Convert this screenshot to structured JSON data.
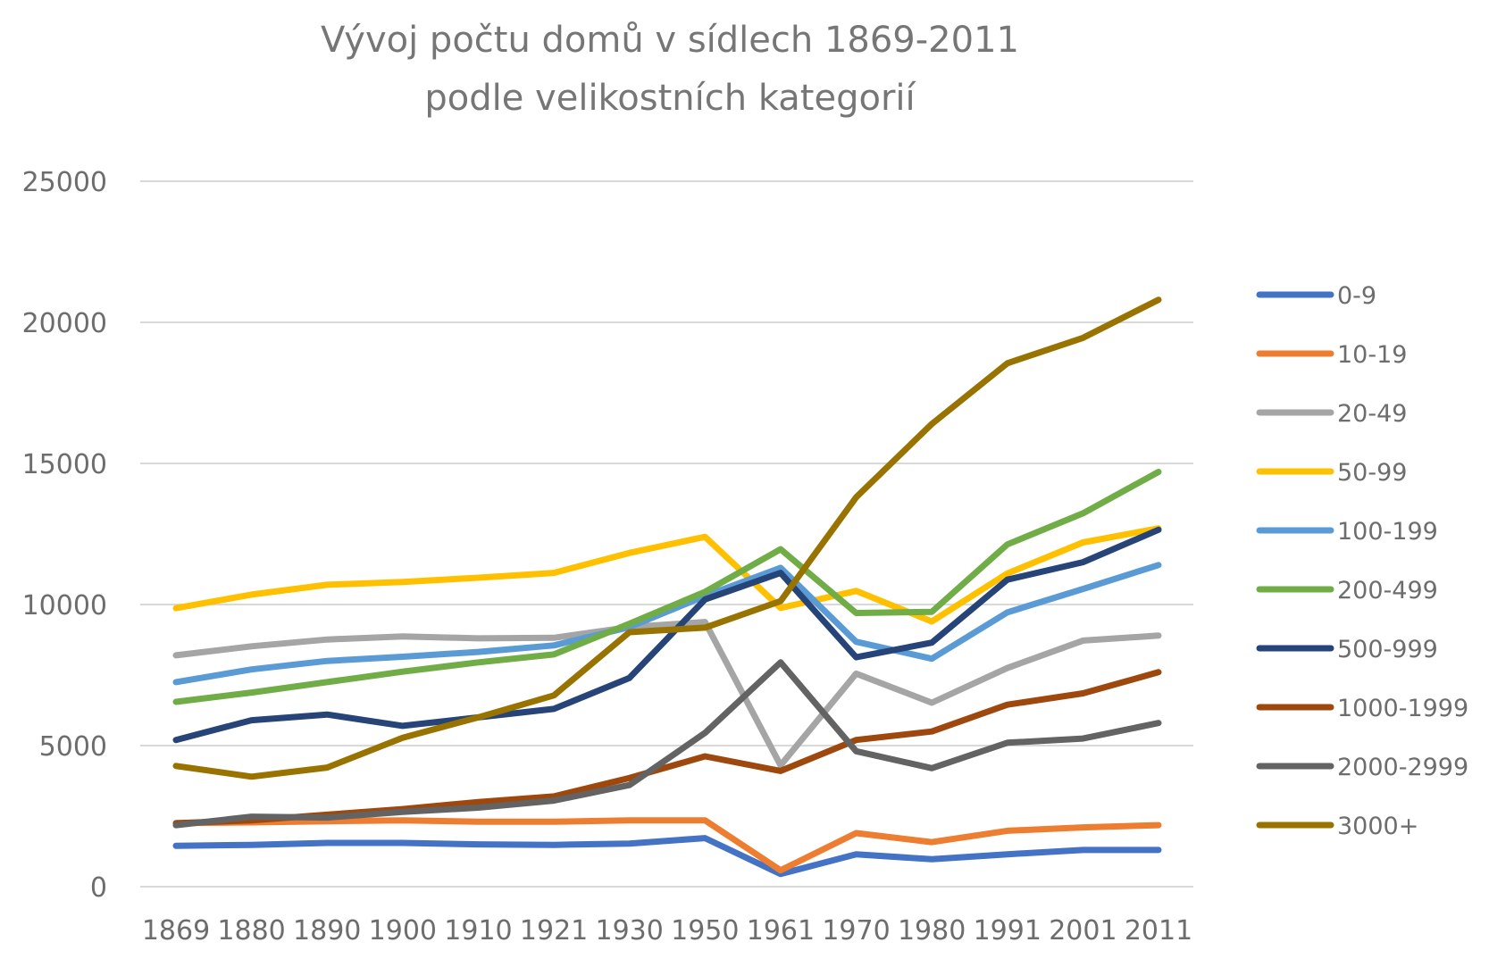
{
  "chart_data": {
    "type": "line",
    "title": "Vývoj počtu domů v sídlech 1869-2011",
    "subtitle": "podle velikostních kategorií",
    "xlabel": "",
    "ylabel": "",
    "ylim": [
      0,
      25000
    ],
    "yticks": [
      "0",
      "5000",
      "10000",
      "15000",
      "20000",
      "25000"
    ],
    "grid": true,
    "legend_position": "right",
    "categories": [
      "1869",
      "1880",
      "1890",
      "1900",
      "1910",
      "1921",
      "1930",
      "1950",
      "1961",
      "1970",
      "1980",
      "1991",
      "2001",
      "2011"
    ],
    "series": [
      {
        "name": "0-9",
        "color": "#4472c4",
        "values": [
          1450,
          1480,
          1550,
          1550,
          1500,
          1480,
          1530,
          1720,
          450,
          1150,
          970,
          1150,
          1300,
          1300
        ]
      },
      {
        "name": "10-19",
        "color": "#ed7d31",
        "values": [
          2250,
          2280,
          2320,
          2350,
          2300,
          2300,
          2350,
          2350,
          580,
          1900,
          1580,
          1980,
          2100,
          2180
        ]
      },
      {
        "name": "20-49",
        "color": "#a5a5a5",
        "values": [
          8200,
          8520,
          8760,
          8870,
          8800,
          8820,
          9200,
          9380,
          4300,
          7550,
          6520,
          7750,
          8720,
          8900
        ]
      },
      {
        "name": "50-99",
        "color": "#ffc000",
        "values": [
          9870,
          10350,
          10700,
          10800,
          10950,
          11120,
          11830,
          12400,
          9880,
          10480,
          9400,
          11100,
          12200,
          12700
        ]
      },
      {
        "name": "100-199",
        "color": "#5b9bd5",
        "values": [
          7250,
          7700,
          8000,
          8150,
          8320,
          8550,
          9200,
          10300,
          11300,
          8680,
          8080,
          9720,
          10550,
          11400
        ]
      },
      {
        "name": "200-499",
        "color": "#70ad47",
        "values": [
          6550,
          6880,
          7250,
          7620,
          7950,
          8230,
          9320,
          10450,
          11960,
          9700,
          9740,
          12130,
          13230,
          14700
        ]
      },
      {
        "name": "500-999",
        "color": "#264478",
        "values": [
          5200,
          5900,
          6100,
          5700,
          6000,
          6300,
          7400,
          10180,
          11120,
          8130,
          8650,
          10880,
          11500,
          12650
        ]
      },
      {
        "name": "1000-1999",
        "color": "#9e480e",
        "values": [
          2250,
          2350,
          2550,
          2750,
          3000,
          3200,
          3850,
          4620,
          4100,
          5200,
          5500,
          6450,
          6850,
          7600
        ]
      },
      {
        "name": "2000-2999",
        "color": "#636363",
        "values": [
          2180,
          2480,
          2450,
          2650,
          2800,
          3050,
          3600,
          5450,
          7950,
          4800,
          4200,
          5100,
          5250,
          5800
        ]
      },
      {
        "name": "3000+",
        "color": "#997300",
        "values": [
          4280,
          3900,
          4220,
          5280,
          6000,
          6780,
          9020,
          9180,
          10120,
          13800,
          16400,
          18550,
          19450,
          20800
        ]
      }
    ]
  }
}
